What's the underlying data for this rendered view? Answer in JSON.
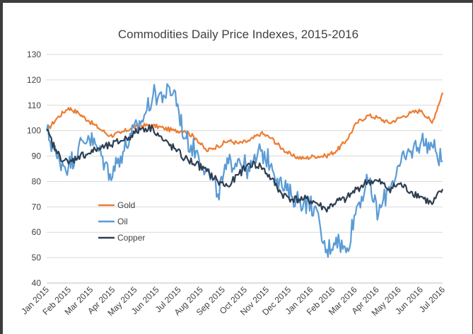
{
  "chart_data": {
    "type": "line",
    "title": "Commodities Daily Price Indexes, 2015-2016",
    "xlabel": "",
    "ylabel": "",
    "ylim": [
      40,
      130
    ],
    "yticks": [
      40,
      50,
      60,
      70,
      80,
      90,
      100,
      110,
      120,
      130
    ],
    "grid": "horizontal",
    "legend_position": "left-middle",
    "x_tick_labels": [
      "Jan 2015",
      "Feb 2015",
      "Mar 2015",
      "Apr 2015",
      "May 2015",
      "Jun 2015",
      "Jul 2015",
      "Aug 2015",
      "Sep 2015",
      "Oct 2015",
      "Nov 2015",
      "Dec 2015",
      "Jan 2016",
      "Feb 2016",
      "Mar 2016",
      "Apr 2016",
      "May 2016",
      "Jun 2016",
      "Jul 2016"
    ],
    "x": [
      "2015-01-01",
      "2015-01-16",
      "2015-02-01",
      "2015-02-15",
      "2015-03-01",
      "2015-03-16",
      "2015-04-01",
      "2015-04-16",
      "2015-05-01",
      "2015-05-16",
      "2015-06-01",
      "2015-06-16",
      "2015-07-01",
      "2015-07-16",
      "2015-08-01",
      "2015-08-16",
      "2015-09-01",
      "2015-09-16",
      "2015-10-01",
      "2015-10-16",
      "2015-11-01",
      "2015-11-16",
      "2015-12-01",
      "2015-12-16",
      "2016-01-01",
      "2016-01-16",
      "2016-02-01",
      "2016-02-16",
      "2016-03-01",
      "2016-03-16",
      "2016-04-01",
      "2016-04-16",
      "2016-05-01",
      "2016-05-16",
      "2016-06-01",
      "2016-06-16",
      "2016-07-01",
      "2016-07-16"
    ],
    "series": [
      {
        "name": "Gold",
        "color": "#ed7d31",
        "values": [
          100,
          105,
          109,
          107,
          104,
          101,
          98,
          99,
          101,
          102,
          102,
          101,
          100,
          100,
          97,
          92,
          94,
          96,
          95,
          96,
          99,
          97,
          93,
          90,
          89,
          90,
          90,
          92,
          96,
          103,
          106,
          105,
          103,
          105,
          107,
          108,
          103,
          115
        ]
      },
      {
        "name": "Oil",
        "color": "#5b9bd5",
        "values": [
          100,
          89,
          86,
          93,
          98,
          92,
          83,
          90,
          98,
          104,
          114,
          114,
          116,
          97,
          92,
          85,
          75,
          87,
          89,
          84,
          92,
          87,
          78,
          74,
          72,
          70,
          52,
          58,
          52,
          70,
          80,
          67,
          78,
          86,
          92,
          96,
          94,
          88
        ]
      },
      {
        "name": "Copper",
        "color": "#2e3e52",
        "values": [
          100,
          91,
          87,
          90,
          91,
          93,
          94,
          96,
          98,
          101,
          101,
          96,
          93,
          89,
          87,
          84,
          80,
          78,
          83,
          87,
          86,
          81,
          75,
          73,
          73,
          72,
          69,
          72,
          73,
          77,
          80,
          80,
          77,
          79,
          76,
          74,
          71,
          77
        ]
      }
    ]
  }
}
